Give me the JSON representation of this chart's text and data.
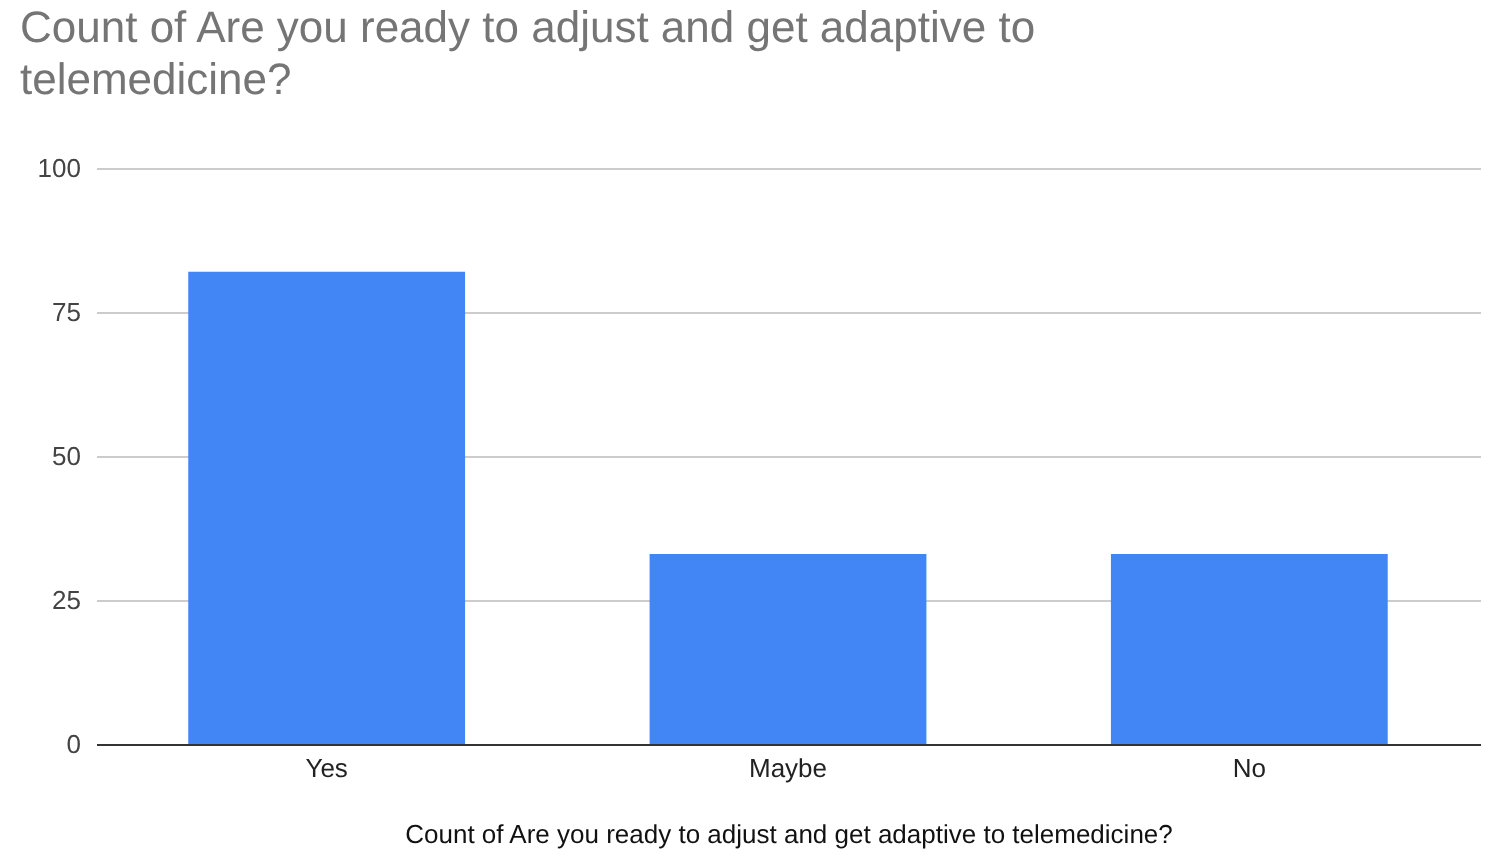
{
  "chart_data": {
    "type": "bar",
    "title": "Count of Are you ready to adjust and get adaptive to telemedicine?",
    "xlabel": "Count of Are you ready to adjust and get adaptive to telemedicine?",
    "categories": [
      "Yes",
      "Maybe",
      "No"
    ],
    "values": [
      82,
      33,
      33
    ],
    "color": "#4285f4",
    "ylim": [
      0,
      100
    ],
    "yticks": [
      0,
      25,
      50,
      75,
      100
    ],
    "grid": "y"
  }
}
